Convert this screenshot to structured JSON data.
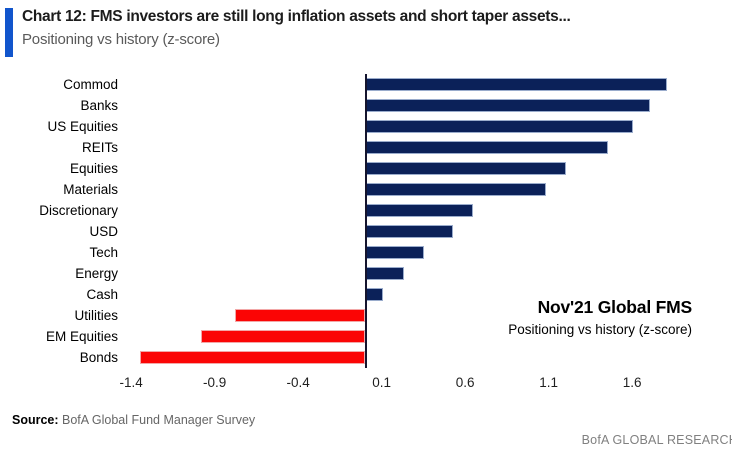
{
  "header": {
    "title": "Chart 12: FMS investors are still long inflation assets and short taper assets...",
    "subtitle": "Positioning vs history (z-score)",
    "accent_color": "#1155CC"
  },
  "chart_data": {
    "type": "bar",
    "orientation": "horizontal",
    "title": "Chart 12: FMS investors are still long inflation assets and short taper assets...",
    "subtitle": "Positioning vs history (z-score)",
    "categories": [
      "Commod",
      "Banks",
      "US Equities",
      "REITs",
      "Equities",
      "Materials",
      "Discretionary",
      "USD",
      "Tech",
      "Energy",
      "Cash",
      "Utilities",
      "EM Equities",
      "Bonds"
    ],
    "values": [
      1.8,
      1.7,
      1.6,
      1.45,
      1.2,
      1.08,
      0.64,
      0.52,
      0.35,
      0.23,
      0.1,
      -0.78,
      -0.98,
      -1.35
    ],
    "xticks": [
      -1.4,
      -0.9,
      -0.4,
      0.1,
      0.6,
      1.1,
      1.6
    ],
    "xlim": [
      -1.45,
      2.1
    ],
    "grid": false,
    "legend": "none",
    "positive_color": "#0B2159",
    "negative_color": "#FB0505",
    "axis_line_color": "#15152E",
    "annotation": {
      "line1": "Nov'21 Global FMS",
      "line2": "Positioning vs history (z-score)"
    }
  },
  "footer": {
    "source_label": "Source:",
    "source_text": " BofA Global Fund Manager Survey",
    "brand": "BofA GLOBAL RESEARCH"
  }
}
